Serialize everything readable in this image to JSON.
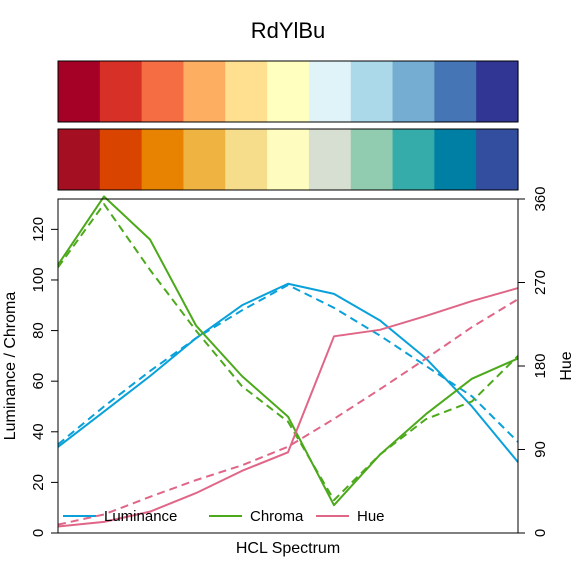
{
  "chart_data": {
    "type": "line",
    "title": "RdYlBu",
    "xlabel": "HCL Spectrum",
    "ylabel": "Luminance / Chroma",
    "y2label": "Hue",
    "ylim": [
      0,
      132
    ],
    "y2lim": [
      0,
      360
    ],
    "yticks": [
      0,
      20,
      40,
      60,
      80,
      100,
      120
    ],
    "y2ticks": [
      0,
      90,
      180,
      270,
      360
    ],
    "palette_top": [
      "#A50026",
      "#D73027",
      "#F46D43",
      "#FDAE61",
      "#FEE090",
      "#FFFFBF",
      "#E0F3F8",
      "#ABD9E9",
      "#74ADD1",
      "#4575B4",
      "#313695"
    ],
    "palette_bottom": [
      "#A50F22",
      "#DA4401",
      "#E88301",
      "#EEB341",
      "#F6DD8C",
      "#FEFDBF",
      "#D7DED2",
      "#91CCB1",
      "#35ABAA",
      "#007FA5",
      "#344E9F"
    ],
    "x": [
      1,
      2,
      3,
      4,
      5,
      6,
      7,
      8,
      9,
      10,
      11
    ],
    "series": [
      {
        "name": "Luminance",
        "color": "#0AA1DA",
        "axis": "left",
        "dash": false,
        "values": [
          34,
          48,
          62,
          77,
          90,
          98.5,
          94.5,
          84,
          69,
          50,
          28
        ]
      },
      {
        "name": "Luminance",
        "color": "#0AA1DA",
        "axis": "left",
        "dash": true,
        "values": [
          35,
          50,
          64,
          77,
          88,
          98,
          89,
          78,
          66,
          54,
          36
        ]
      },
      {
        "name": "Chroma",
        "color": "#4CA91B",
        "axis": "left",
        "dash": false,
        "values": [
          106,
          133,
          116,
          82,
          62,
          46,
          11,
          31,
          47,
          61,
          69
        ]
      },
      {
        "name": "Chroma",
        "color": "#4CA91B",
        "axis": "left",
        "dash": true,
        "values": [
          105,
          130,
          104,
          80,
          58,
          44,
          13,
          31,
          45,
          52,
          70
        ]
      },
      {
        "name": "Hue",
        "color": "#E06688",
        "axis": "right",
        "dash": false,
        "values": [
          7,
          12,
          23,
          43,
          67,
          87,
          212,
          219,
          234,
          250,
          264
        ]
      },
      {
        "name": "Hue",
        "color": "#E06688",
        "axis": "right",
        "dash": true,
        "values": [
          9,
          20,
          39,
          57,
          73,
          93,
          123,
          155,
          188,
          222,
          252
        ]
      }
    ],
    "legend": {
      "placement": "bottom-left",
      "entries": [
        {
          "label": "Luminance",
          "color": "#0AA1DA"
        },
        {
          "label": "Chroma",
          "color": "#4CA91B"
        },
        {
          "label": "Hue",
          "color": "#E06688"
        }
      ]
    }
  }
}
